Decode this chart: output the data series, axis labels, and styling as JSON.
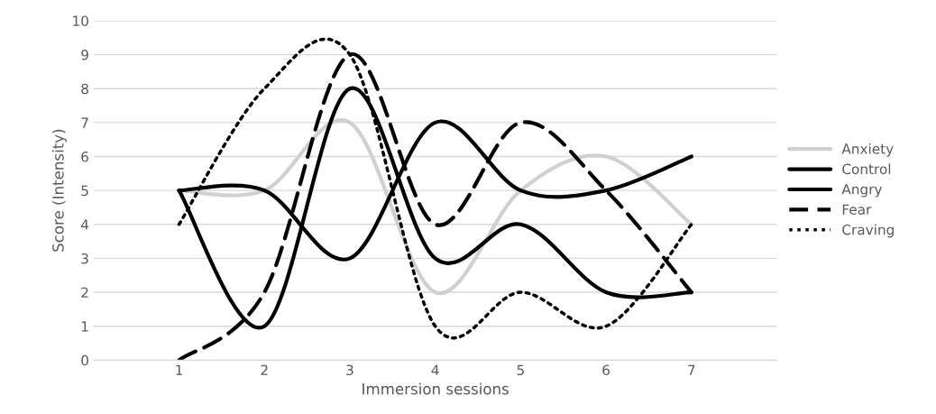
{
  "chart_data": {
    "type": "line",
    "xlabel": "Immersion sessions",
    "ylabel": "Score (Intensity)",
    "categories": [
      "1",
      "2",
      "3",
      "4",
      "5",
      "6",
      "7"
    ],
    "series": [
      {
        "name": "Anxiety",
        "color": "#d0d0d0",
        "line_style": "solid",
        "values": [
          5,
          5,
          7,
          2,
          5,
          6,
          4
        ]
      },
      {
        "name": "Control",
        "color": "#000000",
        "line_style": "solid",
        "values": [
          5,
          5,
          3,
          7,
          5,
          5,
          6
        ]
      },
      {
        "name": "Angry",
        "color": "#000000",
        "line_style": "solid",
        "values": [
          5,
          1,
          8,
          3,
          4,
          2,
          2
        ]
      },
      {
        "name": "Fear",
        "color": "#000000",
        "line_style": "dashed",
        "values": [
          0,
          2,
          9,
          4,
          7,
          5,
          2
        ]
      },
      {
        "name": "Craving",
        "color": "#000000",
        "line_style": "dotted",
        "values": [
          4,
          8,
          9,
          1,
          2,
          1,
          4
        ]
      }
    ],
    "ylim": [
      0,
      10
    ],
    "yticks": [
      0,
      1,
      2,
      3,
      4,
      5,
      6,
      7,
      8,
      9,
      10
    ],
    "grid": "y",
    "legend": "right",
    "marker": "none"
  }
}
